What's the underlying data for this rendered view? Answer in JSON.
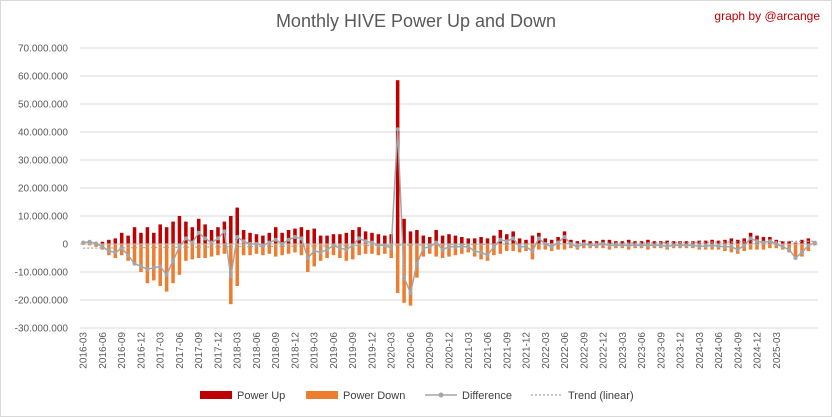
{
  "chart_data": {
    "type": "bar",
    "title": "Monthly HIVE Power Up and Down",
    "credit": "graph by @arcange",
    "xlabel": "",
    "ylabel": "",
    "ylim": [
      -30000000,
      70000000
    ],
    "yticks": [
      70000000,
      60000000,
      50000000,
      40000000,
      30000000,
      20000000,
      10000000,
      0,
      -10000000,
      -20000000,
      -30000000
    ],
    "ytick_labels": [
      "70.000.000",
      "60.000.000",
      "50.000.000",
      "40.000.000",
      "30.000.000",
      "20.000.000",
      "10.000.000",
      "0",
      "-10.000.000",
      "-20.000.000",
      "-30.000.000"
    ],
    "xtick_labels": [
      "2016-03",
      "2016-06",
      "2016-09",
      "2016-12",
      "2017-03",
      "2017-06",
      "2017-09",
      "2017-12",
      "2018-03",
      "2018-06",
      "2018-09",
      "2018-12",
      "2019-03",
      "2019-06",
      "2019-09",
      "2019-12",
      "2020-03",
      "2020-06",
      "2020-09",
      "2020-12",
      "2021-03",
      "2021-06",
      "2021-09",
      "2021-12",
      "2022-03",
      "2022-06",
      "2022-09",
      "2022-12",
      "2023-03",
      "2023-06",
      "2023-09",
      "2023-12",
      "2024-03",
      "2024-06",
      "2024-09",
      "2024-12",
      "2025-03"
    ],
    "grid": true,
    "legend_position": "bottom",
    "colors": {
      "power_up": "#c00000",
      "power_down": "#ed7d31",
      "difference": "#a5a5a5",
      "trend": "#a5a5a5",
      "axis_text": "#595959",
      "gridline": "#d9d9d9"
    },
    "series": [
      {
        "name": "Power Up",
        "values": [
          200000,
          1000000,
          500000,
          800000,
          1500000,
          2000000,
          4000000,
          3000000,
          6000000,
          4000000,
          6000000,
          4000000,
          7000000,
          6000000,
          8000000,
          10000000,
          8000000,
          6000000,
          9000000,
          7000000,
          5000000,
          6000000,
          8000000,
          10000000,
          13000000,
          5000000,
          4000000,
          3500000,
          3000000,
          4000000,
          6000000,
          4000000,
          5000000,
          5500000,
          6000000,
          5000000,
          5500000,
          3000000,
          3000000,
          3500000,
          3500000,
          4000000,
          5000000,
          6000000,
          4500000,
          4000000,
          3500000,
          3000000,
          3500000,
          58500000,
          9000000,
          4500000,
          5000000,
          3000000,
          2500000,
          5000000,
          3000000,
          3500000,
          3000000,
          2500000,
          2000000,
          2000000,
          2500000,
          2000000,
          3000000,
          5000000,
          3500000,
          4500000,
          2000000,
          1500000,
          3000000,
          4000000,
          2000000,
          1500000,
          2500000,
          4500000,
          1500000,
          1000000,
          1500000,
          1000000,
          1000000,
          1500000,
          1500000,
          1000000,
          1000000,
          1500000,
          1000000,
          1000000,
          1500000,
          1000000,
          1000000,
          1200000,
          1000000,
          1000000,
          1000000,
          1000000,
          1200000,
          1200000,
          1500000,
          1200000,
          1500000,
          2000000,
          1500000,
          2000000,
          4000000,
          3000000,
          2500000,
          2500000,
          1500000,
          1000000,
          1000000,
          500000,
          1500000,
          2000000,
          1000000
        ],
        "color": "#c00000"
      },
      {
        "name": "Power Down",
        "values": [
          -300000,
          -500000,
          -1000000,
          -2000000,
          -4000000,
          -5000000,
          -4000000,
          -6000000,
          -7000000,
          -10000000,
          -14000000,
          -13000000,
          -15000000,
          -17000000,
          -14000000,
          -11000000,
          -6000000,
          -5500000,
          -5000000,
          -5000000,
          -4500000,
          -4000000,
          -3500000,
          -21500000,
          -15000000,
          -4000000,
          -4000000,
          -3500000,
          -4000000,
          -3500000,
          -4500000,
          -4000000,
          -3500000,
          -3000000,
          -4000000,
          -10000000,
          -8000000,
          -6000000,
          -5000000,
          -4000000,
          -5000000,
          -6000000,
          -5500000,
          -4000000,
          -3500000,
          -3500000,
          -4000000,
          -3500000,
          -5000000,
          -17500000,
          -21000000,
          -22000000,
          -12000000,
          -4500000,
          -3500000,
          -4500000,
          -5000000,
          -4500000,
          -4000000,
          -3500000,
          -3000000,
          -4500000,
          -5500000,
          -6000000,
          -4000000,
          -3500000,
          -2500000,
          -2500000,
          -3000000,
          -2500000,
          -5500000,
          -2000000,
          -2000000,
          -2500000,
          -2000000,
          -2000000,
          -1500000,
          -2000000,
          -1500000,
          -1500000,
          -1500000,
          -1500000,
          -2000000,
          -1500000,
          -1500000,
          -2000000,
          -1500000,
          -1500000,
          -2000000,
          -1500000,
          -1500000,
          -2000000,
          -1500000,
          -1500000,
          -1500000,
          -1500000,
          -2000000,
          -2000000,
          -2000000,
          -2000000,
          -2500000,
          -3000000,
          -3500000,
          -2500000,
          -2000000,
          -2000000,
          -2000000,
          -1500000,
          -1500000,
          -2000000,
          -3000000,
          -5500000,
          -4500000,
          -2500000,
          -500000
        ],
        "color": "#ed7d31"
      },
      {
        "name": "Difference",
        "values": [
          500000,
          800000,
          200000,
          -1000000,
          -2500000,
          -3000000,
          -1500000,
          -4000000,
          -7000000,
          -8000000,
          -9000000,
          -8500000,
          -8000000,
          -11000000,
          -6000000,
          -1000000,
          2000000,
          500000,
          4000000,
          2000000,
          500000,
          2000000,
          4500000,
          -11500000,
          2500000,
          1000000,
          0,
          0,
          -500000,
          500000,
          1500000,
          0,
          1500000,
          2500000,
          2000000,
          -5000000,
          -2500000,
          -3000000,
          -2000000,
          -500000,
          -1500000,
          -2000000,
          -500000,
          2000000,
          1000000,
          500000,
          -500000,
          -500000,
          -1500000,
          41000000,
          -12000000,
          -17500000,
          -7000000,
          -1500000,
          -1000000,
          500000,
          -2000000,
          -1000000,
          -1000000,
          -1000000,
          -1000000,
          -2500000,
          -3000000,
          -4000000,
          -1000000,
          1500000,
          1000000,
          2000000,
          -1000000,
          -1000000,
          -2500000,
          2000000,
          0,
          -1000000,
          500000,
          2500000,
          0,
          -1000000,
          0,
          -500000,
          -500000,
          0,
          -500000,
          -500000,
          -500000,
          -500000,
          -500000,
          -500000,
          -500000,
          -500000,
          -500000,
          -800000,
          -500000,
          -500000,
          -500000,
          -500000,
          -800000,
          -800000,
          -500000,
          -800000,
          -1000000,
          -1000000,
          -2000000,
          -500000,
          2000000,
          1000000,
          500000,
          1000000,
          0,
          -1000000,
          -2000000,
          -5000000,
          -3000000,
          -500000,
          500000
        ],
        "color": "#a5a5a5"
      },
      {
        "name": "Trend (linear)",
        "values": [
          -1500000,
          1000000
        ],
        "color": "#a5a5a5"
      }
    ]
  },
  "legend": {
    "power_up": "Power Up",
    "power_down": "Power Down",
    "difference": "Difference",
    "trend": "Trend (linear)"
  }
}
